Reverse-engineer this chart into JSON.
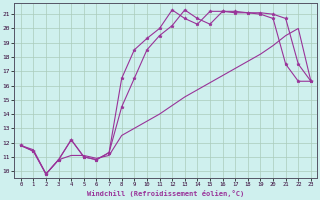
{
  "xlabel": "Windchill (Refroidissement éolien,°C)",
  "xlim": [
    -0.5,
    23.5
  ],
  "ylim": [
    9.5,
    21.8
  ],
  "xticks": [
    0,
    1,
    2,
    3,
    4,
    5,
    6,
    7,
    8,
    9,
    10,
    11,
    12,
    13,
    14,
    15,
    16,
    17,
    18,
    19,
    20,
    21,
    22,
    23
  ],
  "yticks": [
    10,
    11,
    12,
    13,
    14,
    15,
    16,
    17,
    18,
    19,
    20,
    21
  ],
  "line_color": "#993399",
  "bg_color": "#cff0ee",
  "grid_color": "#aaccbb",
  "line1_x": [
    0,
    1,
    2,
    3,
    4,
    5,
    6,
    7,
    8,
    9,
    10,
    11,
    12,
    13,
    14,
    15,
    16,
    17,
    18,
    19,
    20,
    21,
    22,
    23
  ],
  "line1_y": [
    11.8,
    11.4,
    9.8,
    10.8,
    12.2,
    11.0,
    10.8,
    11.3,
    16.5,
    18.5,
    19.3,
    20.0,
    21.3,
    20.7,
    20.3,
    21.2,
    21.2,
    21.1,
    21.1,
    21.0,
    20.7,
    17.5,
    16.3,
    16.3
  ],
  "line2_x": [
    0,
    1,
    2,
    3,
    4,
    5,
    6,
    7,
    8,
    9,
    10,
    11,
    12,
    13,
    14,
    15,
    16,
    17,
    18,
    19,
    20,
    21,
    22,
    23
  ],
  "line2_y": [
    11.8,
    11.4,
    9.8,
    10.8,
    12.2,
    11.0,
    10.8,
    11.3,
    14.5,
    16.5,
    18.5,
    19.5,
    20.2,
    21.3,
    20.7,
    20.3,
    21.2,
    21.2,
    21.1,
    21.1,
    21.0,
    20.7,
    17.5,
    16.3
  ],
  "line3_x": [
    0,
    1,
    2,
    3,
    4,
    5,
    6,
    7,
    8,
    9,
    10,
    11,
    12,
    13,
    14,
    15,
    16,
    17,
    18,
    19,
    20,
    21,
    22,
    23
  ],
  "line3_y": [
    11.8,
    11.5,
    9.8,
    10.8,
    11.1,
    11.1,
    10.9,
    11.1,
    12.5,
    13.0,
    13.5,
    14.0,
    14.6,
    15.2,
    15.7,
    16.2,
    16.7,
    17.2,
    17.7,
    18.2,
    18.8,
    19.5,
    20.0,
    16.3
  ]
}
